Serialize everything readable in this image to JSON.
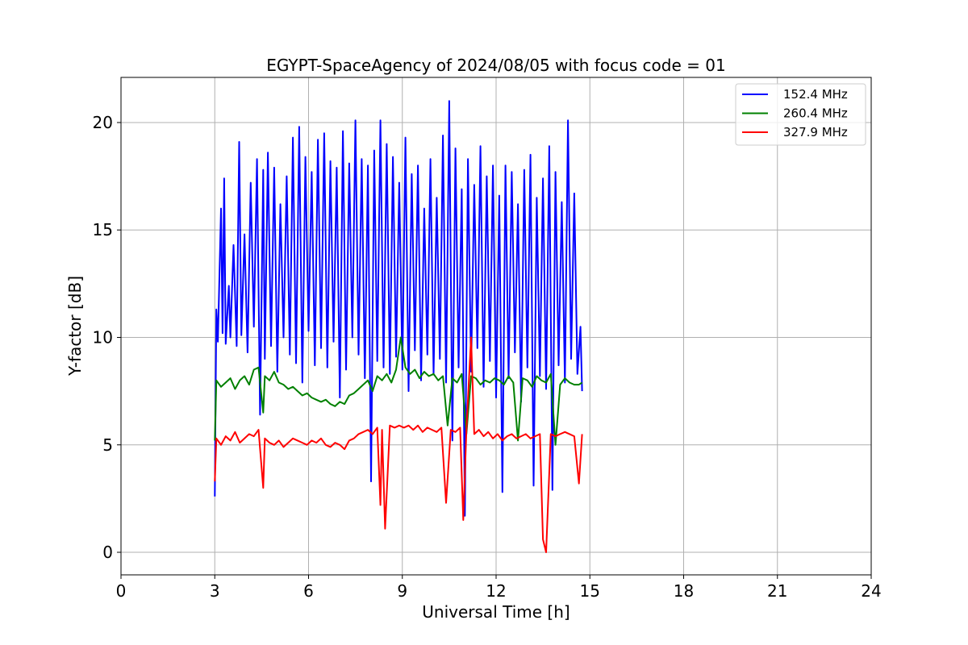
{
  "chart_data": {
    "type": "line",
    "title": "EGYPT-SpaceAgency of 2024/08/05 with focus code = 01",
    "xlabel": "Universal Time [h]",
    "ylabel": "Y-factor [dB]",
    "xlim": [
      0,
      24
    ],
    "ylim": [
      -1.05,
      22.1
    ],
    "xticks": [
      0,
      3,
      6,
      9,
      12,
      15,
      18,
      21,
      24
    ],
    "yticks": [
      0,
      5,
      10,
      15,
      20
    ],
    "grid": true,
    "legend_position": "top-right",
    "series": [
      {
        "name": "152.4 MHz",
        "color": "#0000ff",
        "x": [
          3.0,
          3.05,
          3.1,
          3.2,
          3.25,
          3.3,
          3.35,
          3.45,
          3.5,
          3.6,
          3.7,
          3.78,
          3.85,
          3.95,
          4.05,
          4.15,
          4.25,
          4.35,
          4.45,
          4.55,
          4.6,
          4.7,
          4.8,
          4.9,
          5.0,
          5.1,
          5.2,
          5.3,
          5.4,
          5.5,
          5.6,
          5.7,
          5.8,
          5.9,
          6.0,
          6.1,
          6.2,
          6.3,
          6.4,
          6.5,
          6.6,
          6.7,
          6.8,
          6.9,
          7.0,
          7.1,
          7.2,
          7.3,
          7.4,
          7.5,
          7.6,
          7.7,
          7.8,
          7.9,
          8.0,
          8.1,
          8.2,
          8.3,
          8.4,
          8.5,
          8.6,
          8.7,
          8.8,
          8.9,
          9.0,
          9.1,
          9.2,
          9.3,
          9.4,
          9.5,
          9.6,
          9.7,
          9.8,
          9.9,
          10.0,
          10.1,
          10.2,
          10.3,
          10.4,
          10.5,
          10.6,
          10.7,
          10.8,
          10.9,
          11.0,
          11.1,
          11.2,
          11.3,
          11.4,
          11.5,
          11.6,
          11.7,
          11.8,
          11.9,
          12.0,
          12.1,
          12.2,
          12.3,
          12.4,
          12.5,
          12.6,
          12.7,
          12.8,
          12.9,
          13.0,
          13.1,
          13.2,
          13.3,
          13.4,
          13.5,
          13.6,
          13.7,
          13.8,
          13.9,
          14.0,
          14.1,
          14.2,
          14.3,
          14.4,
          14.5,
          14.6,
          14.7,
          14.75
        ],
        "values": [
          2.6,
          11.3,
          9.8,
          16.0,
          10.2,
          17.4,
          9.7,
          12.4,
          10.0,
          14.3,
          9.6,
          19.1,
          10.1,
          14.8,
          9.3,
          17.2,
          10.5,
          18.3,
          6.4,
          17.8,
          9.0,
          18.6,
          9.6,
          17.9,
          8.4,
          16.2,
          10.0,
          17.5,
          9.2,
          19.3,
          8.8,
          19.8,
          7.9,
          18.4,
          10.3,
          17.7,
          8.7,
          19.2,
          9.5,
          19.5,
          8.6,
          18.2,
          9.8,
          17.9,
          7.2,
          19.6,
          8.5,
          18.1,
          10.0,
          20.1,
          9.2,
          18.3,
          8.1,
          18.0,
          3.3,
          18.7,
          8.9,
          20.1,
          8.6,
          19.0,
          8.3,
          18.4,
          9.1,
          17.2,
          8.5,
          19.3,
          7.5,
          17.6,
          9.4,
          18.0,
          8.0,
          16.0,
          9.2,
          18.3,
          8.3,
          16.5,
          9.0,
          19.4,
          7.9,
          21.0,
          5.2,
          18.8,
          8.6,
          16.9,
          1.7,
          18.3,
          8.4,
          17.1,
          9.5,
          18.9,
          7.7,
          17.5,
          8.9,
          18.0,
          7.2,
          16.6,
          2.8,
          18.0,
          8.1,
          17.7,
          9.3,
          16.2,
          7.0,
          17.8,
          8.6,
          18.5,
          3.1,
          16.5,
          8.2,
          17.4,
          7.6,
          18.9,
          2.9,
          17.7,
          8.7,
          16.3,
          7.9,
          20.1,
          9.0,
          16.7,
          8.3,
          10.5,
          7.5
        ]
      },
      {
        "name": "260.4 MHz",
        "color": "#008000",
        "x": [
          3.0,
          3.05,
          3.2,
          3.35,
          3.5,
          3.65,
          3.8,
          3.95,
          4.1,
          4.25,
          4.4,
          4.55,
          4.6,
          4.75,
          4.9,
          5.05,
          5.2,
          5.35,
          5.5,
          5.65,
          5.8,
          5.95,
          6.1,
          6.25,
          6.4,
          6.55,
          6.7,
          6.85,
          7.0,
          7.15,
          7.3,
          7.45,
          7.6,
          7.75,
          7.9,
          8.05,
          8.2,
          8.35,
          8.5,
          8.65,
          8.8,
          8.95,
          9.1,
          9.25,
          9.4,
          9.55,
          9.7,
          9.85,
          10.0,
          10.15,
          10.3,
          10.45,
          10.6,
          10.75,
          10.9,
          11.05,
          11.2,
          11.35,
          11.5,
          11.65,
          11.8,
          11.95,
          12.1,
          12.25,
          12.4,
          12.55,
          12.7,
          12.85,
          13.0,
          13.15,
          13.3,
          13.45,
          13.6,
          13.75,
          13.9,
          14.05,
          14.2,
          14.35,
          14.5,
          14.65,
          14.75
        ],
        "values": [
          5.2,
          8.0,
          7.7,
          7.9,
          8.1,
          7.6,
          8.0,
          8.2,
          7.8,
          8.5,
          8.6,
          6.5,
          8.2,
          8.0,
          8.4,
          7.9,
          7.8,
          7.6,
          7.7,
          7.5,
          7.3,
          7.4,
          7.2,
          7.1,
          7.0,
          7.1,
          6.9,
          6.8,
          7.0,
          6.9,
          7.3,
          7.4,
          7.6,
          7.8,
          8.0,
          7.5,
          8.2,
          8.0,
          8.3,
          7.9,
          8.5,
          10.0,
          8.6,
          8.3,
          8.5,
          8.1,
          8.4,
          8.2,
          8.3,
          8.0,
          8.2,
          5.9,
          8.1,
          7.9,
          8.3,
          5.5,
          8.2,
          8.1,
          7.8,
          8.0,
          7.9,
          8.1,
          8.0,
          7.8,
          8.2,
          7.9,
          5.2,
          8.1,
          8.0,
          7.7,
          8.2,
          8.0,
          7.9,
          8.3,
          5.0,
          7.8,
          8.1,
          7.9,
          7.8,
          7.8,
          7.9
        ]
      },
      {
        "name": "327.9 MHz",
        "color": "#ff0000",
        "x": [
          3.0,
          3.05,
          3.2,
          3.35,
          3.5,
          3.65,
          3.8,
          3.95,
          4.1,
          4.25,
          4.4,
          4.55,
          4.6,
          4.75,
          4.9,
          5.05,
          5.2,
          5.35,
          5.5,
          5.65,
          5.8,
          5.95,
          6.1,
          6.25,
          6.4,
          6.55,
          6.7,
          6.85,
          7.0,
          7.15,
          7.3,
          7.45,
          7.6,
          7.75,
          7.9,
          8.05,
          8.2,
          8.3,
          8.35,
          8.45,
          8.6,
          8.75,
          8.9,
          9.05,
          9.2,
          9.35,
          9.5,
          9.65,
          9.8,
          9.95,
          10.1,
          10.25,
          10.4,
          10.55,
          10.7,
          10.85,
          10.95,
          11.05,
          11.2,
          11.3,
          11.45,
          11.6,
          11.75,
          11.9,
          12.05,
          12.2,
          12.35,
          12.5,
          12.65,
          12.8,
          12.95,
          13.1,
          13.25,
          13.4,
          13.5,
          13.6,
          13.75,
          13.9,
          14.05,
          14.2,
          14.35,
          14.5,
          14.65,
          14.75
        ],
        "values": [
          3.3,
          5.3,
          5.0,
          5.4,
          5.2,
          5.6,
          5.1,
          5.3,
          5.5,
          5.4,
          5.7,
          3.0,
          5.3,
          5.1,
          5.0,
          5.2,
          4.9,
          5.1,
          5.3,
          5.2,
          5.1,
          5.0,
          5.2,
          5.1,
          5.3,
          5.0,
          4.9,
          5.1,
          5.0,
          4.8,
          5.2,
          5.3,
          5.5,
          5.6,
          5.7,
          5.5,
          5.8,
          2.2,
          5.7,
          1.1,
          5.9,
          5.8,
          5.9,
          5.8,
          5.9,
          5.7,
          5.9,
          5.6,
          5.8,
          5.7,
          5.6,
          5.8,
          2.3,
          5.7,
          5.6,
          5.8,
          1.5,
          5.7,
          10.0,
          5.5,
          5.7,
          5.4,
          5.6,
          5.3,
          5.5,
          5.2,
          5.4,
          5.5,
          5.3,
          5.4,
          5.5,
          5.3,
          5.4,
          5.5,
          0.6,
          0.0,
          5.5,
          5.4,
          5.5,
          5.6,
          5.5,
          5.4,
          3.2,
          5.5
        ]
      }
    ]
  }
}
